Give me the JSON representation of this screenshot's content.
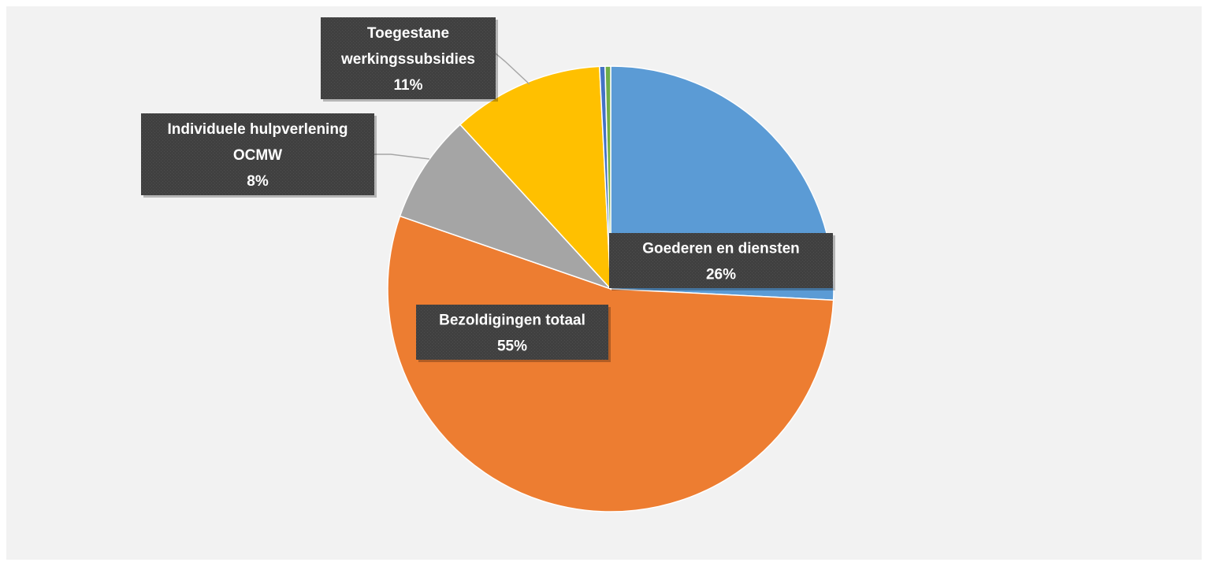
{
  "chart_data": {
    "type": "pie",
    "title": "",
    "slices": [
      {
        "label_lines": [
          "Goederen en diensten"
        ],
        "percent_label": "26%",
        "value": 25.8,
        "color": "#5b9bd5"
      },
      {
        "label_lines": [
          "Bezoldigingen totaal"
        ],
        "percent_label": "55%",
        "value": 54.5,
        "color": "#ed7d31"
      },
      {
        "label_lines": [
          "Individuele hulpverlening",
          "OCMW"
        ],
        "percent_label": "8%",
        "value": 7.9,
        "color": "#a5a5a5"
      },
      {
        "label_lines": [
          "Toegestane",
          "werkingssubsidies"
        ],
        "percent_label": "11%",
        "value": 11.0,
        "color": "#ffc000"
      },
      {
        "label_lines": [],
        "percent_label": "",
        "value": 0.4,
        "color": "#4472c4"
      },
      {
        "label_lines": [],
        "percent_label": "",
        "value": 0.4,
        "color": "#70ad47"
      }
    ],
    "legend": "none",
    "label_box_color": "#404040"
  }
}
